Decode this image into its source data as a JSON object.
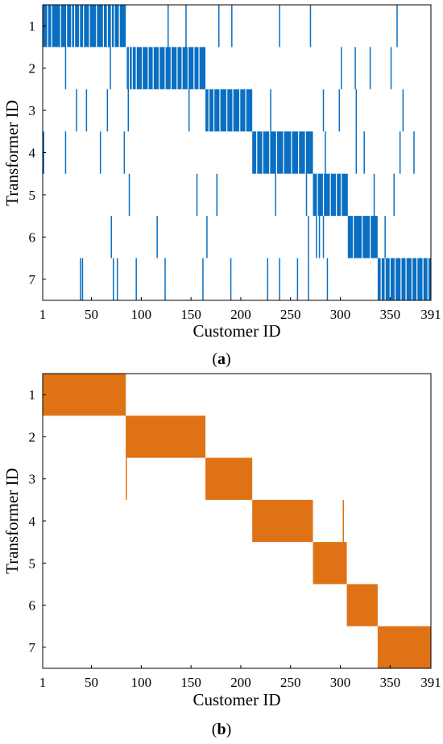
{
  "chart_data": [
    {
      "type": "heatmap",
      "panel_label": {
        "open": "(",
        "letter": "a",
        "close": ")"
      },
      "xlabel": "Customer ID",
      "ylabel": "Transformer ID",
      "x_ticks": [
        1,
        50,
        100,
        150,
        200,
        250,
        300,
        350,
        391
      ],
      "y_ticks": [
        1,
        2,
        3,
        4,
        5,
        6,
        7
      ],
      "xlim": [
        1,
        391
      ],
      "color": "#0a6fc2",
      "blocks": [
        {
          "transformer": 1,
          "from": 1,
          "to": 84
        },
        {
          "transformer": 2,
          "from": 86,
          "to": 164
        },
        {
          "transformer": 3,
          "from": 165,
          "to": 211
        },
        {
          "transformer": 4,
          "from": 212,
          "to": 272
        },
        {
          "transformer": 5,
          "from": 273,
          "to": 307
        },
        {
          "transformer": 6,
          "from": 308,
          "to": 337
        },
        {
          "transformer": 7,
          "from": 338,
          "to": 391
        }
      ],
      "gaps": [
        {
          "transformer": 1,
          "ids": [
            6,
            10,
            19,
            25,
            30,
            33,
            38,
            42,
            48,
            55,
            62,
            66,
            70,
            73,
            78
          ]
        },
        {
          "transformer": 2,
          "ids": [
            88,
            91,
            95,
            101,
            107,
            112,
            118,
            124,
            130,
            136,
            141,
            147,
            153,
            158
          ]
        },
        {
          "transformer": 3,
          "ids": [
            168,
            173,
            179,
            186,
            192,
            199,
            205
          ]
        },
        {
          "transformer": 4,
          "ids": [
            216,
            222,
            229,
            236,
            243,
            251,
            258,
            265
          ]
        },
        {
          "transformer": 5,
          "ids": [
            277,
            283,
            290,
            296,
            301
          ]
        },
        {
          "transformer": 6,
          "ids": [
            313,
            322,
            330
          ]
        },
        {
          "transformer": 7,
          "ids": [
            341,
            345,
            350,
            355,
            361,
            366,
            372,
            377,
            383,
            388
          ]
        }
      ],
      "scattered": [
        {
          "transformer": 1,
          "ids": [
            127,
            145,
            178,
            191,
            239,
            270,
            357
          ]
        },
        {
          "transformer": 2,
          "ids": [
            24,
            69,
            301,
            315,
            330,
            351
          ]
        },
        {
          "transformer": 3,
          "ids": [
            35,
            45,
            66,
            87,
            148,
            230,
            283,
            299,
            316,
            363
          ]
        },
        {
          "transformer": 4,
          "ids": [
            2,
            24,
            59,
            83,
            285,
            316,
            324,
            360,
            374
          ]
        },
        {
          "transformer": 5,
          "ids": [
            88,
            156,
            176,
            235,
            266,
            334,
            354
          ]
        },
        {
          "transformer": 6,
          "ids": [
            70,
            116,
            166,
            268,
            276,
            279,
            283,
            334,
            345
          ]
        },
        {
          "transformer": 7,
          "ids": [
            39,
            41,
            72,
            76,
            95,
            124,
            162,
            190,
            227,
            239,
            257,
            268,
            287
          ]
        }
      ]
    },
    {
      "type": "heatmap",
      "panel_label": {
        "open": "(",
        "letter": "b",
        "close": ")"
      },
      "xlabel": "Customer ID",
      "ylabel": "Transformer ID",
      "x_ticks": [
        1,
        50,
        100,
        150,
        200,
        250,
        300,
        350,
        391
      ],
      "y_ticks": [
        1,
        2,
        3,
        4,
        5,
        6,
        7
      ],
      "xlim": [
        1,
        391
      ],
      "color": "#e07216",
      "blocks": [
        {
          "transformer": 1,
          "from": 1,
          "to": 84
        },
        {
          "transformer": 2,
          "from": 86,
          "to": 164
        },
        {
          "transformer": 3,
          "from": 165,
          "to": 211
        },
        {
          "transformer": 4,
          "from": 212,
          "to": 272
        },
        {
          "transformer": 5,
          "from": 273,
          "to": 306
        },
        {
          "transformer": 6,
          "from": 307,
          "to": 337
        },
        {
          "transformer": 7,
          "from": 338,
          "to": 391
        }
      ],
      "gaps": [],
      "scattered": [
        {
          "transformer": 2,
          "ids": [
            85
          ]
        },
        {
          "transformer": 3,
          "ids": [
            85
          ]
        },
        {
          "transformer": 4,
          "ids": [
            303
          ]
        },
        {
          "transformer": 5,
          "ids": [
            303
          ]
        }
      ]
    }
  ]
}
